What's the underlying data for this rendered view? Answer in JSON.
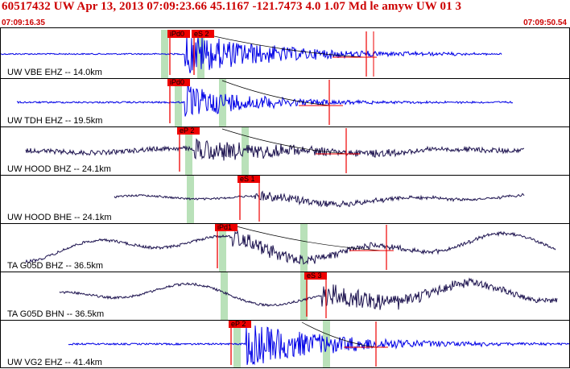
{
  "header": {
    "title": "60517432 UW Apr 13, 2013 07:09:23.66    45.1167 -121.7473  4.0 1.07 Md le amyw UW 01    3",
    "time_start": "07:09:16.35",
    "time_end": "07:09:50.54"
  },
  "colors": {
    "blue_trace": "#0000e6",
    "purple_trace": "#1e1450",
    "pick_red": "#ee0000",
    "window_green": "#b9e1b9",
    "frame": "#000000",
    "title_red": "#cc0000"
  },
  "traces": [
    {
      "label": "UW VBE EHZ -- 14.0km",
      "color": "blue",
      "noise": 0.04,
      "lf": 0.0,
      "event": 0.92,
      "decay": 0.35,
      "picks": [
        {
          "text": "iPd0",
          "t": 0.295
        },
        {
          "text": "eS 2",
          "t": 0.337
        }
      ],
      "green": [
        0.288,
        0.352
      ],
      "mark_red": 0.643,
      "mark_red2": 0.655,
      "start": 0.0,
      "end": 0.88,
      "curve_from": 0.345,
      "curve_to": 0.64
    },
    {
      "label": "UW TDH EHZ -- 19.5km",
      "color": "blue",
      "noise": 0.05,
      "lf": 0.0,
      "event": 0.72,
      "decay": 0.28,
      "picks": [
        {
          "text": "iPd0",
          "t": 0.295
        }
      ],
      "green": [
        0.312,
        0.39
      ],
      "mark_red": 0.578,
      "start": 0.03,
      "end": 0.9,
      "curve_from": 0.39,
      "curve_to": 0.58
    },
    {
      "label": "UW HOOD BHZ -- 24.1km",
      "color": "purple",
      "noise": 0.14,
      "lf": 0.15,
      "event": 0.5,
      "decay": 0.4,
      "picks": [
        {
          "text": "eP 2",
          "t": 0.312
        }
      ],
      "green": [
        0.33,
        0.43
      ],
      "mark_red": 0.607,
      "start": 0.045,
      "end": 0.92,
      "curve_from": 0.39,
      "curve_to": 0.61
    },
    {
      "label": "UW HOOD BHE -- 24.1km",
      "color": "purple",
      "noise": 0.06,
      "lf": 0.3,
      "event": 0.2,
      "decay": 0.5,
      "picks": [
        {
          "text": "eS 1",
          "t": 0.418
        }
      ],
      "green": [
        0.333
      ],
      "mark_red": 0.455,
      "start": 0.2,
      "end": 0.92,
      "curve_from": 0.0,
      "curve_to": 0.0
    },
    {
      "label": "TA G05D BHZ -- 36.5km",
      "color": "purple",
      "noise": 0.08,
      "lf": 0.85,
      "event": 0.35,
      "decay": 0.45,
      "picks": [
        {
          "text": "iPd1",
          "t": 0.378
        }
      ],
      "green": [
        0.39,
        0.532
      ],
      "mark_red": 0.678,
      "start": 0.045,
      "end": 0.975,
      "curve_from": 0.41,
      "curve_to": 0.67
    },
    {
      "label": "TA G05D BHN -- 36.5km",
      "color": "purple",
      "noise": 0.07,
      "lf": 0.75,
      "event": 0.5,
      "decay": 0.5,
      "picks": [
        {
          "text": "eS 3",
          "t": 0.535
        }
      ],
      "green": [
        0.392,
        0.532
      ],
      "mark_red": 0.572,
      "start": 0.105,
      "end": 0.978,
      "curve_from": 0.0,
      "curve_to": 0.0
    },
    {
      "label": "UW VG2 EHZ -- 41.4km",
      "color": "blue",
      "noise": 0.05,
      "lf": 0.0,
      "event": 0.95,
      "decay": 0.35,
      "picks": [
        {
          "text": "eP 2",
          "t": 0.403
        }
      ],
      "green": [
        0.415,
        0.572
      ],
      "mark_red": 0.66,
      "start": 0.12,
      "end": 1.0,
      "curve_from": 0.53,
      "curve_to": 0.66
    }
  ]
}
